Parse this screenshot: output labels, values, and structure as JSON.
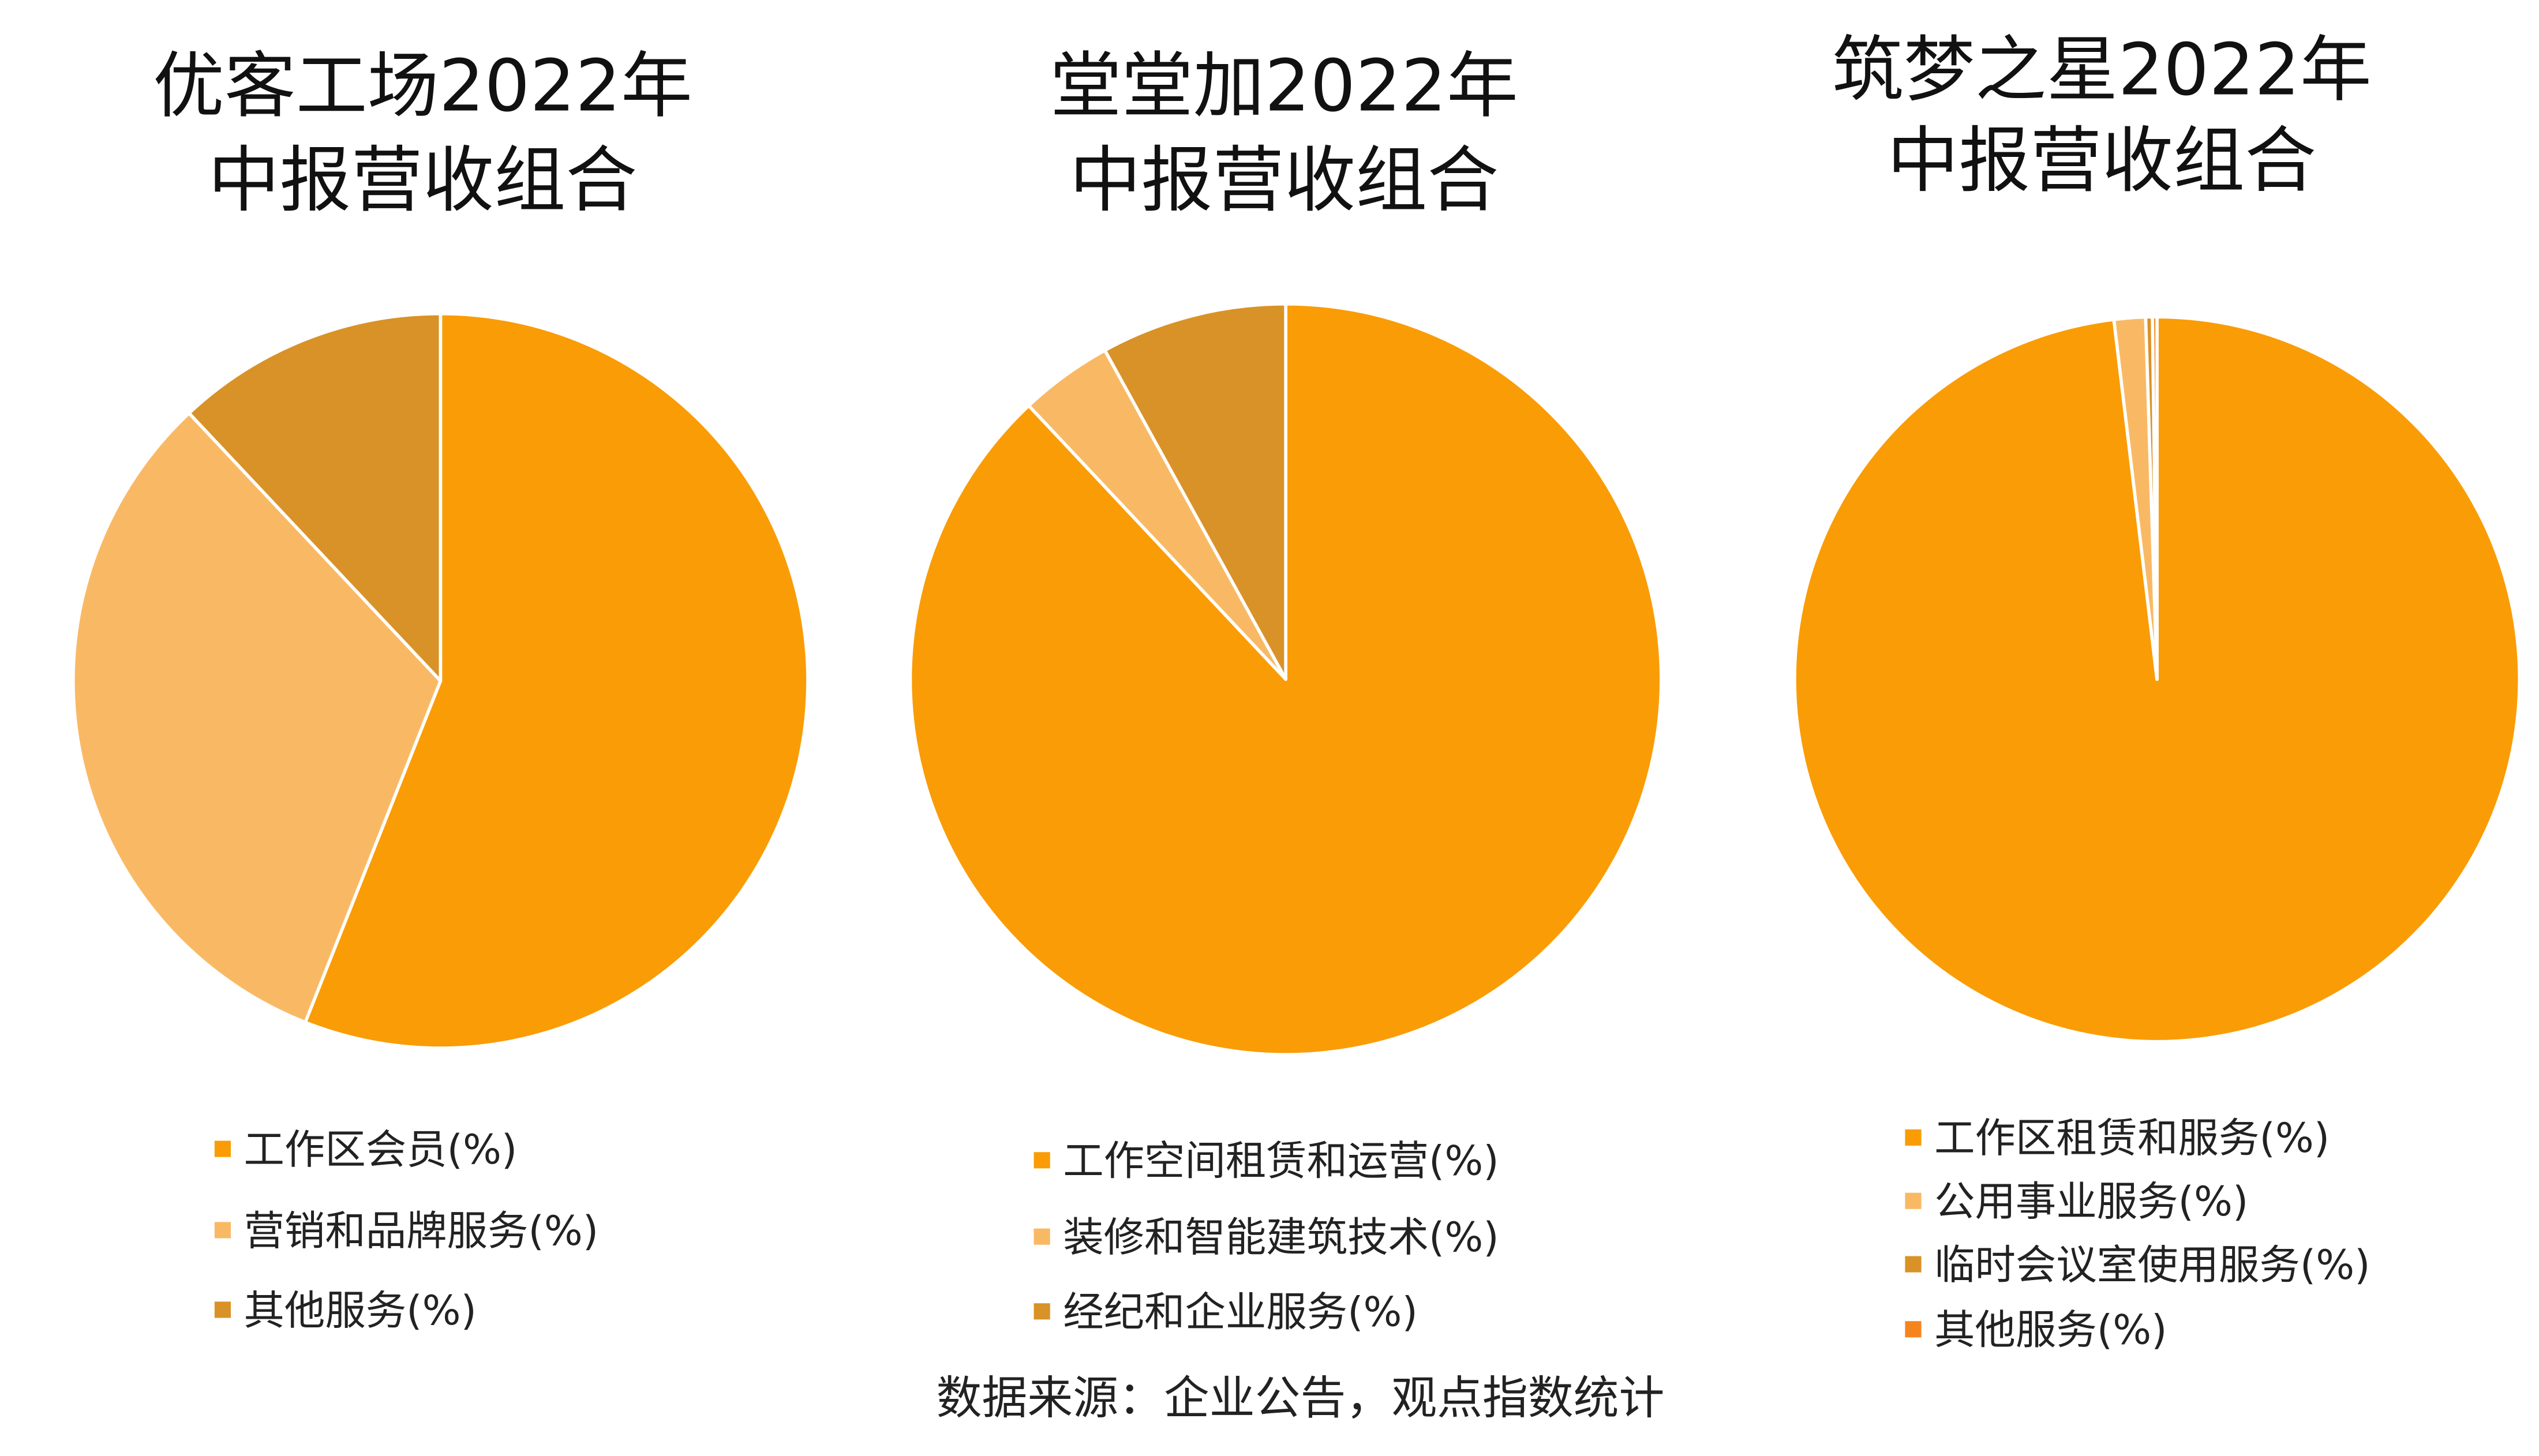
{
  "chart_data": [
    {
      "type": "pie",
      "title_lines": [
        "优客工场2022年",
        "中报营收组合"
      ],
      "slices": [
        {
          "label": "工作区会员(%)",
          "value": 56,
          "color": "#FA9C05"
        },
        {
          "label": "营销和品牌服务(%)",
          "value": 32,
          "color": "#F9B964"
        },
        {
          "label": "其他服务(%)",
          "value": 12,
          "color": "#D99227"
        }
      ]
    },
    {
      "type": "pie",
      "title_lines": [
        "堂堂加2022年",
        "中报营收组合"
      ],
      "slices": [
        {
          "label": "工作空间租赁和运营(%)",
          "value": 88,
          "color": "#FA9C05"
        },
        {
          "label": "装修和智能建筑技术(%)",
          "value": 4,
          "color": "#F9B964"
        },
        {
          "label": "经纪和企业服务(%)",
          "value": 8,
          "color": "#D99227"
        }
      ]
    },
    {
      "type": "pie",
      "title_lines": [
        "筑梦之星2022年",
        "中报营收组合"
      ],
      "slices": [
        {
          "label": "工作区租赁和服务(%)",
          "value": 98.1,
          "color": "#FA9C05"
        },
        {
          "label": "公用事业服务(%)",
          "value": 1.4,
          "color": "#F9B964"
        },
        {
          "label": "临时会议室使用服务(%)",
          "value": 0.3,
          "color": "#D99227"
        },
        {
          "label": "其他服务(%)",
          "value": 0.2,
          "color": "#F5841F"
        }
      ]
    }
  ],
  "footer": {
    "source": "数据来源：企业公告，观点指数统计"
  }
}
